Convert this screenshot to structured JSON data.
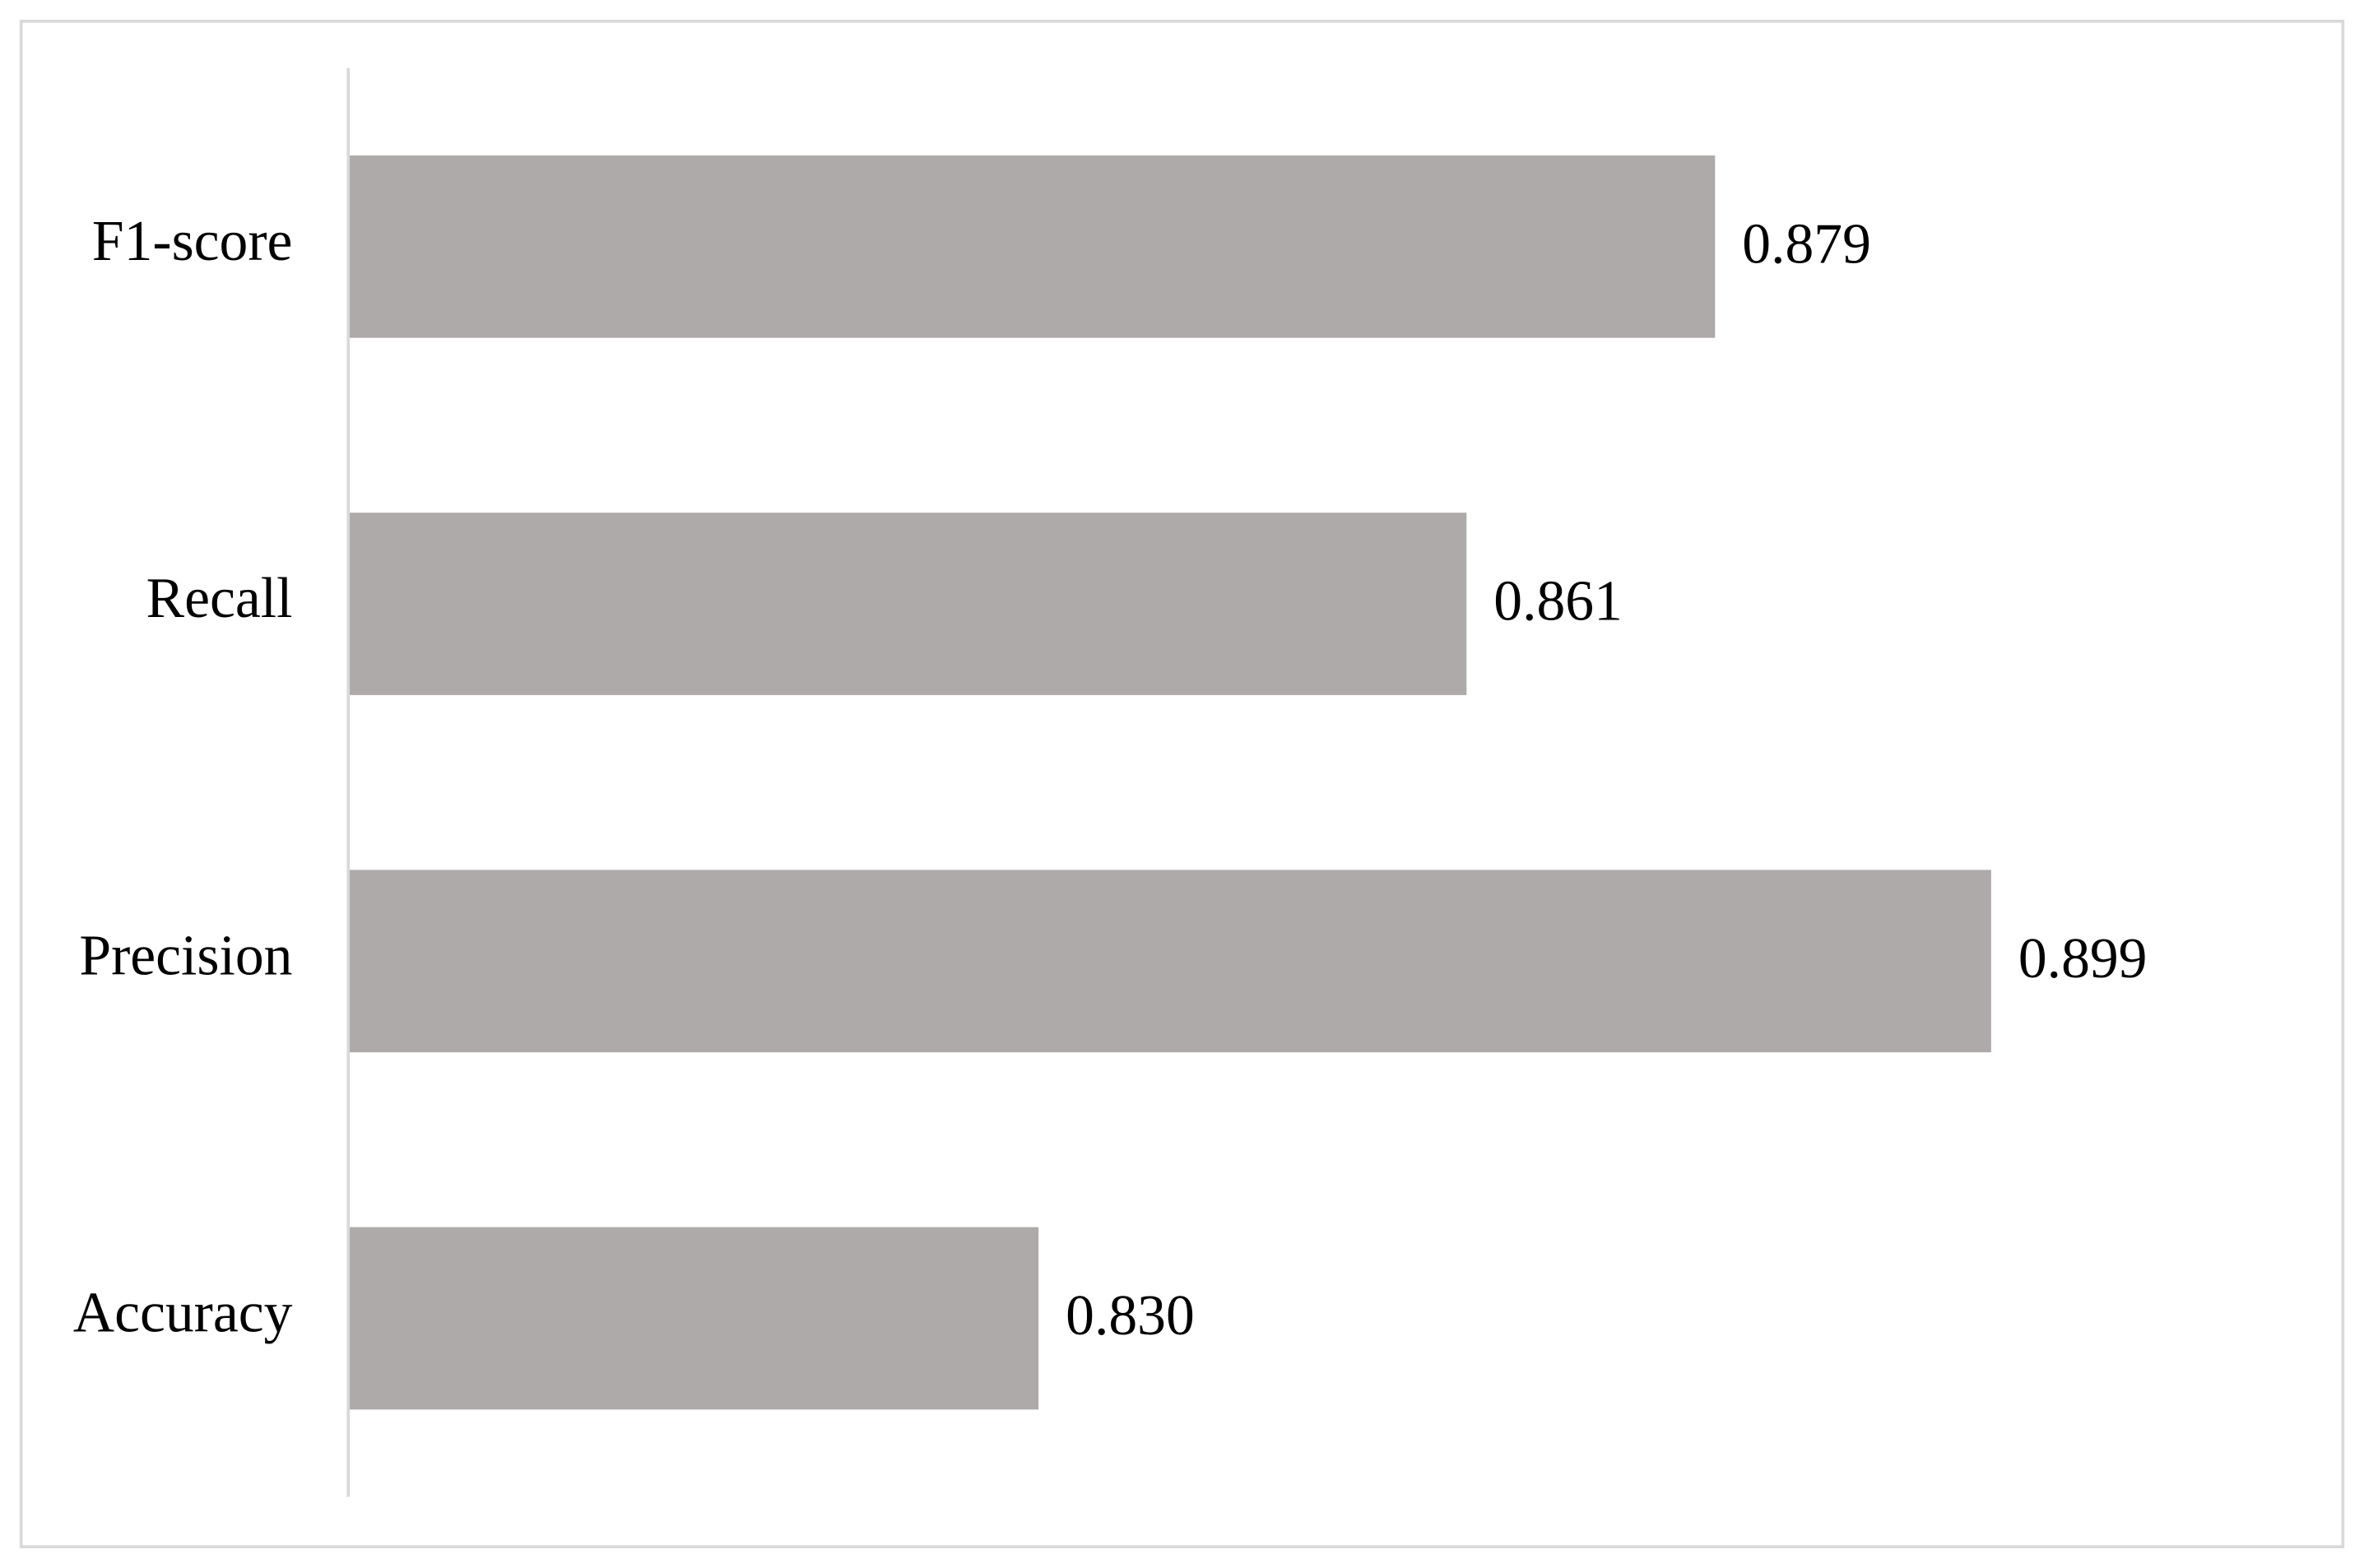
{
  "chart_data": {
    "type": "barh",
    "categories": [
      "F1-score",
      "Recall",
      "Precision",
      "Accuracy"
    ],
    "values": [
      0.879,
      0.861,
      0.899,
      0.83
    ],
    "value_labels": [
      "0.879",
      "0.861",
      "0.899",
      "0.830"
    ],
    "color": "#aeaaa9",
    "xlim": [
      0.78,
      0.92
    ]
  }
}
